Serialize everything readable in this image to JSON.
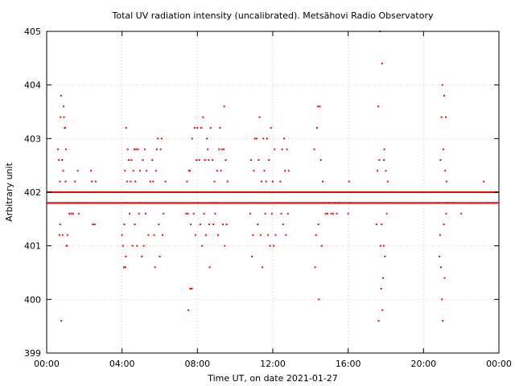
{
  "chart_data": {
    "type": "scatter",
    "title": "Total UV radiation intensity (uncalibrated). Metsähovi Radio Observatory",
    "xlabel": "Time UT, on date 2021-01-27",
    "ylabel": "Arbitrary unit",
    "x_unit": "hours UT",
    "xlim": [
      0,
      24
    ],
    "ylim": [
      399,
      405
    ],
    "x_ticks": [
      0,
      4,
      8,
      12,
      16,
      20,
      24
    ],
    "x_tick_labels": [
      "00:00",
      "04:00",
      "08:00",
      "12:00",
      "16:00",
      "20:00",
      "00:00"
    ],
    "y_ticks": [
      399,
      400,
      401,
      402,
      403,
      404,
      405
    ],
    "y_tick_labels": [
      "399",
      "400",
      "401",
      "402",
      "403",
      "404",
      "405"
    ],
    "grid": true,
    "legend": "none",
    "marker_color": "#ff0000",
    "baseline_values": [
      402.0,
      401.8
    ],
    "baseline_x_range": [
      0.05,
      23.95
    ],
    "series": [
      {
        "values": [
          [
            0.6,
            402.8
          ],
          [
            0.65,
            402.6
          ],
          [
            0.7,
            402.2
          ],
          [
            0.72,
            401.4
          ],
          [
            0.68,
            401.2
          ],
          [
            0.74,
            403.4
          ],
          [
            0.76,
            403.8
          ],
          [
            0.78,
            399.6
          ],
          [
            0.82,
            402.6
          ],
          [
            0.84,
            401.2
          ],
          [
            0.88,
            402.4
          ],
          [
            0.9,
            403.6
          ],
          [
            0.92,
            403.4
          ],
          [
            0.95,
            403.2
          ],
          [
            0.98,
            403.2
          ],
          [
            1.0,
            402.2
          ],
          [
            1.02,
            402.8
          ],
          [
            1.05,
            401.0
          ],
          [
            1.08,
            401.0
          ],
          [
            1.1,
            401.2
          ],
          [
            1.15,
            401.8
          ],
          [
            1.2,
            401.6
          ],
          [
            1.3,
            401.6
          ],
          [
            1.4,
            401.6
          ],
          [
            1.5,
            402.2
          ],
          [
            1.6,
            401.8
          ],
          [
            1.65,
            402.4
          ],
          [
            1.7,
            401.6
          ],
          [
            1.8,
            401.8
          ],
          [
            2.0,
            401.8
          ],
          [
            2.2,
            401.8
          ],
          [
            2.35,
            402.4
          ],
          [
            2.4,
            402.2
          ],
          [
            2.45,
            401.4
          ],
          [
            2.55,
            401.4
          ],
          [
            2.6,
            402.2
          ],
          [
            4.0,
            401.2
          ],
          [
            4.05,
            401.0
          ],
          [
            4.1,
            400.6
          ],
          [
            4.12,
            401.4
          ],
          [
            4.15,
            402.4
          ],
          [
            4.18,
            400.6
          ],
          [
            4.2,
            400.8
          ],
          [
            4.22,
            403.2
          ],
          [
            4.25,
            401.8
          ],
          [
            4.28,
            402.2
          ],
          [
            4.3,
            402.8
          ],
          [
            4.35,
            402.6
          ],
          [
            4.4,
            401.6
          ],
          [
            4.45,
            402.2
          ],
          [
            4.5,
            402.6
          ],
          [
            4.55,
            401.0
          ],
          [
            4.6,
            402.4
          ],
          [
            4.65,
            402.8
          ],
          [
            4.68,
            401.4
          ],
          [
            4.7,
            402.2
          ],
          [
            4.75,
            402.8
          ],
          [
            4.8,
            401.0
          ],
          [
            4.85,
            402.8
          ],
          [
            4.9,
            401.6
          ],
          [
            4.95,
            402.4
          ],
          [
            5.0,
            401.8
          ],
          [
            5.05,
            400.8
          ],
          [
            5.1,
            402.6
          ],
          [
            5.15,
            401.0
          ],
          [
            5.2,
            402.8
          ],
          [
            5.25,
            401.6
          ],
          [
            5.3,
            402.4
          ],
          [
            5.35,
            401.8
          ],
          [
            5.4,
            401.2
          ],
          [
            5.5,
            402.2
          ],
          [
            5.6,
            402.6
          ],
          [
            5.65,
            402.2
          ],
          [
            5.7,
            401.2
          ],
          [
            5.75,
            400.6
          ],
          [
            5.8,
            402.4
          ],
          [
            5.85,
            402.8
          ],
          [
            5.9,
            403.0
          ],
          [
            5.95,
            401.4
          ],
          [
            6.0,
            400.8
          ],
          [
            6.05,
            402.8
          ],
          [
            6.1,
            403.0
          ],
          [
            6.15,
            401.2
          ],
          [
            6.2,
            401.6
          ],
          [
            6.3,
            402.2
          ],
          [
            7.4,
            401.6
          ],
          [
            7.45,
            402.2
          ],
          [
            7.5,
            401.6
          ],
          [
            7.52,
            399.8
          ],
          [
            7.55,
            402.4
          ],
          [
            7.6,
            402.4
          ],
          [
            7.62,
            400.2
          ],
          [
            7.65,
            401.4
          ],
          [
            7.7,
            400.2
          ],
          [
            7.72,
            403.0
          ],
          [
            7.8,
            401.6
          ],
          [
            7.85,
            403.2
          ],
          [
            7.9,
            401.2
          ],
          [
            7.95,
            402.6
          ],
          [
            8.0,
            403.2
          ],
          [
            8.05,
            401.8
          ],
          [
            8.1,
            402.6
          ],
          [
            8.15,
            401.4
          ],
          [
            8.2,
            403.2
          ],
          [
            8.25,
            401.0
          ],
          [
            8.3,
            403.4
          ],
          [
            8.35,
            401.6
          ],
          [
            8.4,
            402.6
          ],
          [
            8.45,
            401.2
          ],
          [
            8.5,
            403.0
          ],
          [
            8.55,
            402.8
          ],
          [
            8.6,
            402.6
          ],
          [
            8.62,
            401.4
          ],
          [
            8.65,
            400.6
          ],
          [
            8.7,
            403.2
          ],
          [
            8.75,
            401.8
          ],
          [
            8.8,
            402.6
          ],
          [
            8.85,
            401.4
          ],
          [
            8.9,
            402.2
          ],
          [
            8.95,
            401.6
          ],
          [
            9.0,
            401.8
          ],
          [
            9.05,
            402.4
          ],
          [
            9.1,
            401.2
          ],
          [
            9.15,
            402.8
          ],
          [
            9.2,
            403.2
          ],
          [
            9.25,
            402.4
          ],
          [
            9.3,
            402.8
          ],
          [
            9.35,
            401.4
          ],
          [
            9.4,
            402.8
          ],
          [
            9.42,
            403.6
          ],
          [
            9.45,
            401.0
          ],
          [
            9.5,
            402.6
          ],
          [
            9.55,
            401.4
          ],
          [
            9.6,
            402.2
          ],
          [
            10.8,
            401.6
          ],
          [
            10.85,
            402.6
          ],
          [
            10.9,
            400.8
          ],
          [
            10.95,
            401.2
          ],
          [
            11.0,
            402.4
          ],
          [
            11.05,
            403.0
          ],
          [
            11.1,
            401.8
          ],
          [
            11.15,
            403.0
          ],
          [
            11.2,
            401.4
          ],
          [
            11.25,
            402.6
          ],
          [
            11.3,
            403.4
          ],
          [
            11.35,
            401.2
          ],
          [
            11.4,
            402.2
          ],
          [
            11.45,
            400.6
          ],
          [
            11.5,
            403.0
          ],
          [
            11.55,
            402.4
          ],
          [
            11.6,
            401.6
          ],
          [
            11.65,
            402.2
          ],
          [
            11.7,
            403.0
          ],
          [
            11.75,
            401.2
          ],
          [
            11.8,
            402.6
          ],
          [
            11.85,
            401.0
          ],
          [
            11.9,
            403.2
          ],
          [
            11.95,
            401.6
          ],
          [
            12.0,
            402.2
          ],
          [
            12.05,
            401.0
          ],
          [
            12.1,
            402.8
          ],
          [
            12.15,
            401.2
          ],
          [
            12.2,
            401.8
          ],
          [
            12.4,
            402.2
          ],
          [
            12.45,
            401.6
          ],
          [
            12.5,
            402.8
          ],
          [
            12.55,
            401.4
          ],
          [
            12.6,
            403.0
          ],
          [
            12.65,
            402.4
          ],
          [
            12.7,
            401.2
          ],
          [
            12.75,
            402.8
          ],
          [
            12.8,
            401.6
          ],
          [
            12.85,
            402.4
          ],
          [
            12.9,
            402.0
          ],
          [
            14.2,
            402.8
          ],
          [
            14.25,
            400.6
          ],
          [
            14.3,
            401.2
          ],
          [
            14.35,
            403.2
          ],
          [
            14.4,
            403.6
          ],
          [
            14.42,
            401.4
          ],
          [
            14.45,
            400.0
          ],
          [
            14.5,
            403.6
          ],
          [
            14.55,
            402.6
          ],
          [
            14.6,
            401.0
          ],
          [
            14.65,
            402.2
          ],
          [
            14.7,
            401.8
          ],
          [
            14.8,
            401.6
          ],
          [
            14.9,
            401.6
          ],
          [
            15.0,
            401.8
          ],
          [
            15.1,
            401.6
          ],
          [
            15.2,
            401.6
          ],
          [
            15.3,
            401.8
          ],
          [
            15.4,
            401.6
          ],
          [
            15.5,
            401.8
          ],
          [
            16.0,
            401.6
          ],
          [
            16.05,
            402.2
          ],
          [
            16.1,
            401.8
          ],
          [
            17.5,
            401.4
          ],
          [
            17.55,
            402.4
          ],
          [
            17.6,
            403.6
          ],
          [
            17.62,
            399.6
          ],
          [
            17.65,
            402.6
          ],
          [
            17.7,
            405.0
          ],
          [
            17.72,
            401.0
          ],
          [
            17.75,
            400.2
          ],
          [
            17.78,
            401.4
          ],
          [
            17.8,
            404.4
          ],
          [
            17.82,
            399.8
          ],
          [
            17.85,
            400.4
          ],
          [
            17.88,
            401.0
          ],
          [
            17.9,
            402.6
          ],
          [
            17.92,
            402.8
          ],
          [
            17.95,
            400.8
          ],
          [
            18.0,
            402.4
          ],
          [
            18.05,
            401.6
          ],
          [
            18.1,
            402.2
          ],
          [
            18.2,
            401.8
          ],
          [
            20.8,
            401.8
          ],
          [
            20.85,
            400.8
          ],
          [
            20.88,
            401.2
          ],
          [
            20.9,
            402.6
          ],
          [
            20.92,
            400.6
          ],
          [
            20.95,
            403.4
          ],
          [
            20.98,
            400.0
          ],
          [
            21.0,
            404.0
          ],
          [
            21.02,
            399.6
          ],
          [
            21.05,
            402.8
          ],
          [
            21.08,
            401.4
          ],
          [
            21.1,
            403.8
          ],
          [
            21.12,
            400.4
          ],
          [
            21.15,
            402.4
          ],
          [
            21.18,
            403.4
          ],
          [
            21.2,
            401.6
          ],
          [
            21.22,
            402.2
          ],
          [
            21.25,
            401.8
          ],
          [
            21.3,
            401.8
          ],
          [
            21.6,
            401.8
          ],
          [
            22.0,
            401.6
          ],
          [
            22.5,
            401.8
          ],
          [
            23.2,
            402.2
          ],
          [
            23.4,
            401.8
          ],
          [
            23.7,
            401.8
          ]
        ]
      }
    ]
  }
}
